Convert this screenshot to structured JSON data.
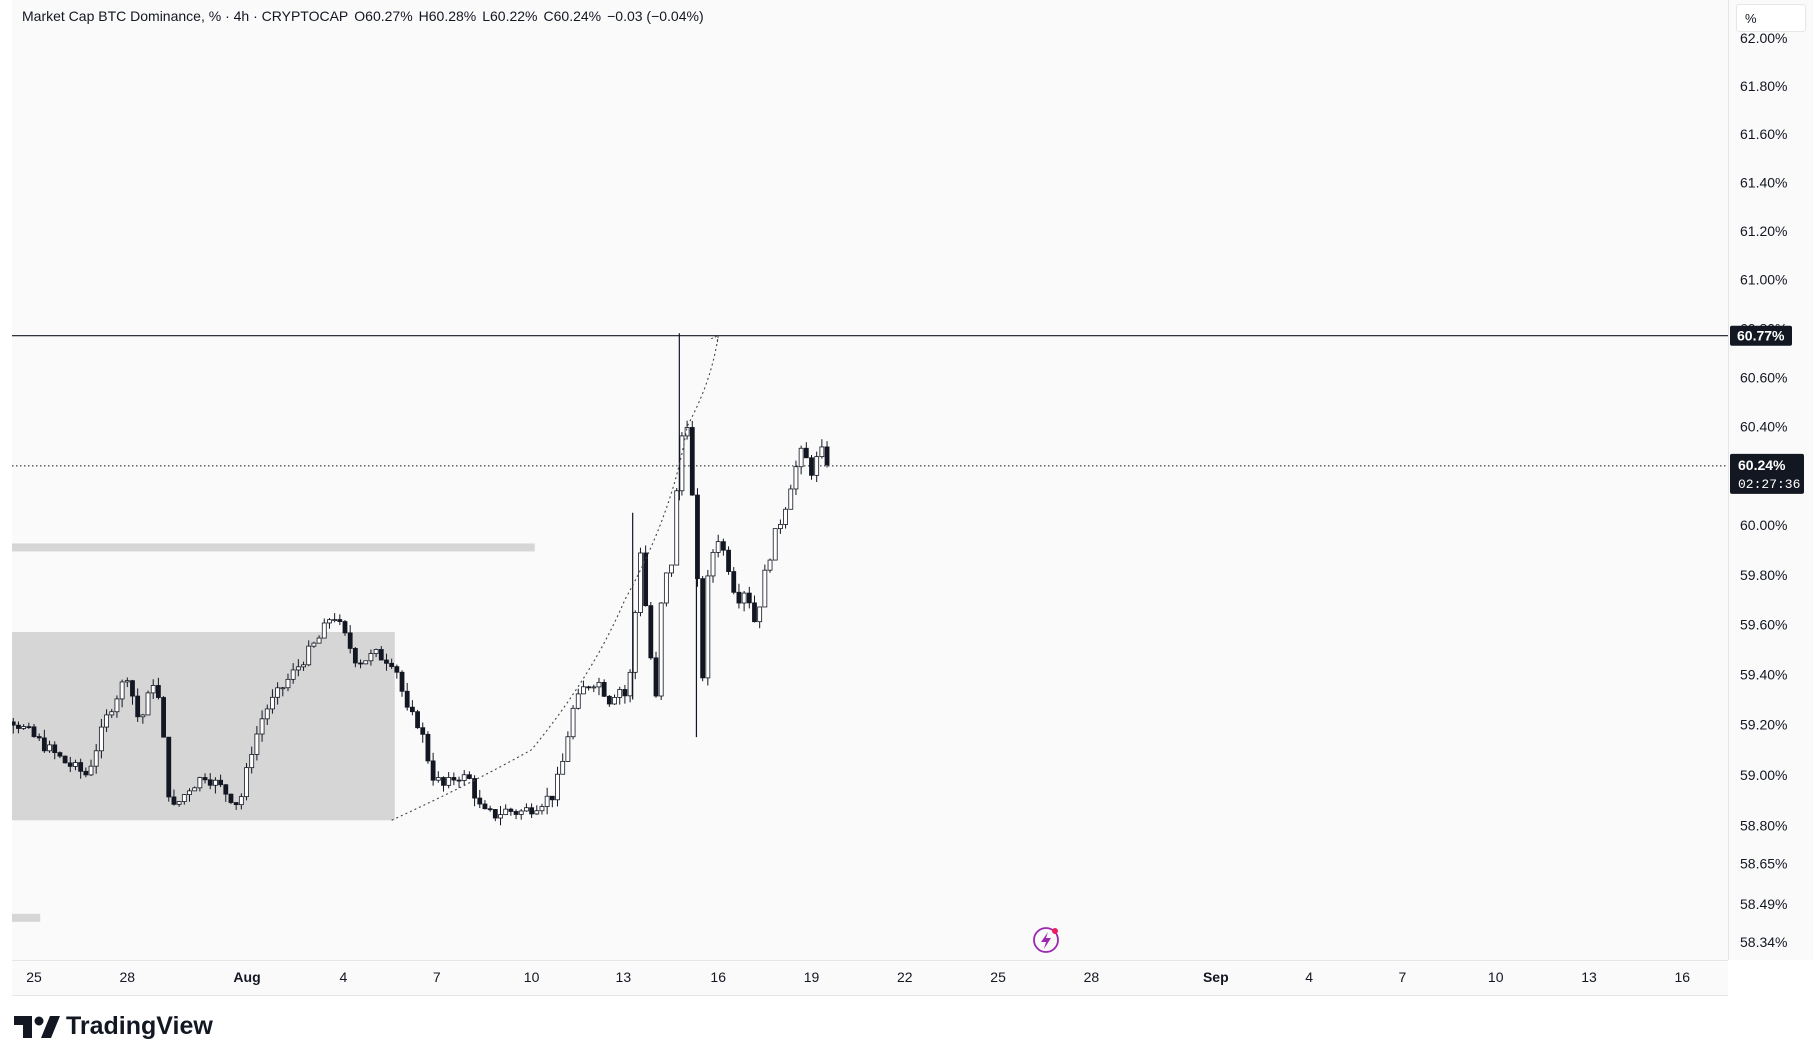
{
  "header": {
    "symbol": "Market Cap BTC Dominance, % · 4h · CRYPTOCAP",
    "open": "O60.27%",
    "high": "H60.28%",
    "low": "L60.22%",
    "close": "C60.24%",
    "change": "−0.03 (−0.04%)"
  },
  "price_scale_unit": "%",
  "branding": {
    "name": "TradingView"
  },
  "colors": {
    "candle": "#131722",
    "zone": "#d4d4d4",
    "background": "#fafafa"
  },
  "chart_data": {
    "type": "candlestick",
    "timeframe": "4h",
    "y_scale": "log",
    "ylim": [
      58.27,
      62.08
    ],
    "x_tick_labels": [
      "25",
      "28",
      "Aug",
      "4",
      "7",
      "10",
      "13",
      "16",
      "19",
      "22",
      "25",
      "28",
      "Sep",
      "4",
      "7",
      "10",
      "13",
      "16"
    ],
    "y_tick_labels": [
      "62.00%",
      "61.80%",
      "61.60%",
      "61.40%",
      "61.20%",
      "61.00%",
      "60.80%",
      "60.60%",
      "60.40%",
      "60.00%",
      "59.80%",
      "59.60%",
      "59.40%",
      "59.20%",
      "59.00%",
      "58.80%",
      "58.65%",
      "58.49%",
      "58.34%"
    ],
    "y_ticks": [
      62.0,
      61.8,
      61.6,
      61.4,
      61.2,
      61.0,
      60.8,
      60.6,
      60.4,
      60.0,
      59.8,
      59.6,
      59.4,
      59.2,
      59.0,
      58.8,
      58.65,
      58.49,
      58.34
    ],
    "current_price": {
      "value": 60.24,
      "label": "60.24%",
      "countdown": "02:27:36"
    },
    "resistance_line": {
      "value": 60.77,
      "label": "60.77%"
    },
    "price_path_days": [
      [
        -2.0,
        59.65
      ],
      [
        -1.8,
        59.3
      ],
      [
        -1.0,
        59.25
      ],
      [
        0.0,
        59.15
      ],
      [
        1.0,
        59.05
      ],
      [
        1.7,
        59.0
      ],
      [
        2.4,
        59.25
      ],
      [
        3.0,
        59.4
      ],
      [
        3.4,
        59.2
      ],
      [
        3.9,
        59.4
      ],
      [
        4.2,
        59.1
      ],
      [
        4.4,
        58.85
      ],
      [
        5.0,
        58.95
      ],
      [
        5.5,
        59.0
      ],
      [
        6.0,
        58.95
      ],
      [
        6.6,
        58.88
      ],
      [
        7.0,
        59.1
      ],
      [
        7.4,
        59.25
      ],
      [
        8.0,
        59.35
      ],
      [
        8.6,
        59.45
      ],
      [
        9.2,
        59.55
      ],
      [
        9.6,
        59.65
      ],
      [
        10.0,
        59.55
      ],
      [
        10.4,
        59.45
      ],
      [
        11.0,
        59.48
      ],
      [
        11.6,
        59.45
      ],
      [
        12.0,
        59.25
      ],
      [
        12.4,
        59.2
      ],
      [
        12.8,
        59.0
      ],
      [
        13.2,
        58.95
      ],
      [
        13.6,
        59.0
      ],
      [
        14.0,
        58.98
      ],
      [
        14.4,
        58.85
      ],
      [
        14.8,
        58.84
      ],
      [
        15.2,
        58.86
      ],
      [
        15.6,
        58.85
      ],
      [
        16.0,
        58.87
      ],
      [
        16.4,
        58.9
      ],
      [
        16.7,
        58.92
      ],
      [
        17.0,
        59.05
      ],
      [
        17.3,
        59.25
      ],
      [
        17.7,
        59.35
      ],
      [
        18.1,
        59.38
      ],
      [
        18.5,
        59.3
      ],
      [
        18.8,
        59.35
      ],
      [
        19.1,
        59.3
      ],
      [
        19.5,
        59.9
      ],
      [
        19.8,
        59.5
      ],
      [
        20.0,
        59.3
      ],
      [
        20.2,
        59.75
      ],
      [
        20.5,
        59.85
      ],
      [
        20.8,
        60.35
      ],
      [
        21.0,
        60.42
      ],
      [
        21.2,
        60.05
      ],
      [
        21.5,
        59.4
      ],
      [
        21.7,
        59.85
      ],
      [
        22.0,
        59.95
      ],
      [
        22.3,
        59.85
      ],
      [
        22.6,
        59.7
      ],
      [
        22.9,
        59.75
      ],
      [
        23.2,
        59.6
      ],
      [
        23.5,
        59.8
      ],
      [
        23.8,
        59.95
      ],
      [
        24.1,
        60.05
      ],
      [
        24.4,
        60.2
      ],
      [
        24.7,
        60.3
      ],
      [
        25.0,
        60.22
      ],
      [
        25.3,
        60.3
      ],
      [
        25.6,
        60.24
      ]
    ],
    "spikes_days": [
      {
        "day": 20.75,
        "high": 60.78,
        "low": 60.1
      },
      {
        "day": 21.3,
        "high": 59.8,
        "low": 59.15
      },
      {
        "day": 19.25,
        "high": 60.05,
        "low": 59.3
      }
    ],
    "zones": [
      {
        "from_day": -3.0,
        "to_day": 11.6,
        "low": 58.82,
        "high": 59.57
      },
      {
        "from_day": -3.0,
        "to_day": 16.1,
        "low": 59.9,
        "high": 59.92
      },
      {
        "from_day": -3.0,
        "to_day": 0.2,
        "low": 58.43,
        "high": 58.44
      }
    ],
    "projection_curve_days": [
      [
        11.5,
        58.82
      ],
      [
        16.0,
        59.1
      ],
      [
        19.0,
        59.7
      ],
      [
        21.0,
        60.4
      ],
      [
        22.0,
        60.77
      ]
    ]
  }
}
